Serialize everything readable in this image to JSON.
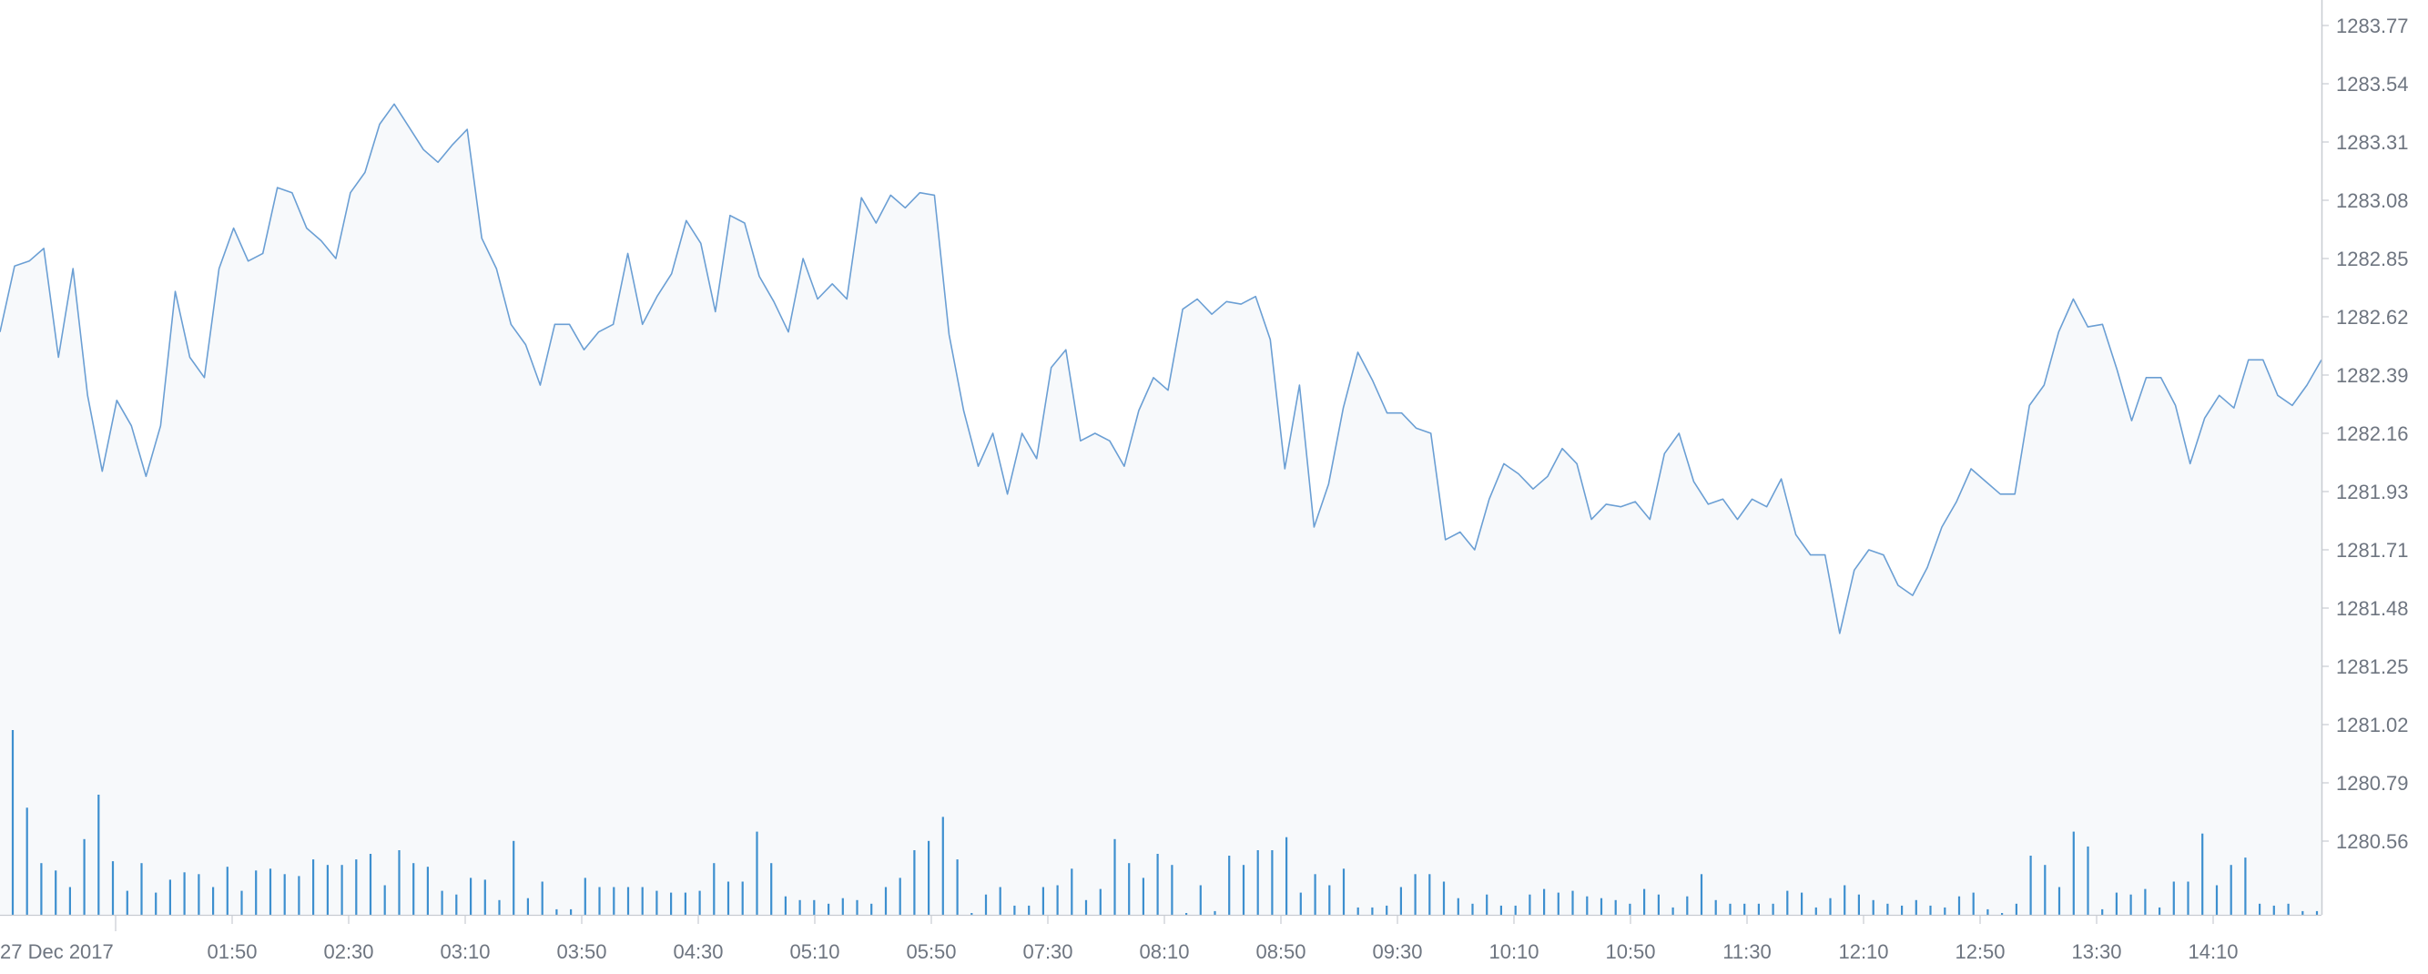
{
  "chart_data": {
    "type": "area",
    "title": "",
    "xlabel": "",
    "ylabel": "",
    "first_label": "27 Dec 2017",
    "x_tick_labels": [
      "27 Dec 2017",
      "01:50",
      "02:30",
      "03:10",
      "03:50",
      "04:30",
      "05:10",
      "05:50",
      "07:30",
      "08:10",
      "08:50",
      "09:30",
      "10:10",
      "10:50",
      "11:30",
      "12:10",
      "12:50",
      "13:30",
      "14:10"
    ],
    "y_tick_labels": [
      "1283.77",
      "1283.54",
      "1283.31",
      "1283.08",
      "1282.85",
      "1282.62",
      "1282.39",
      "1282.16",
      "1281.93",
      "1281.71",
      "1281.48",
      "1281.25",
      "1281.02",
      "1280.79",
      "1280.56"
    ],
    "ylim": [
      1280.33,
      1283.93
    ],
    "y_axis_side": "right",
    "grid": false,
    "line_color": "#6b9fd4",
    "fill_color": "#f7f9fb",
    "volume_color": "#3d8fcf",
    "price_series": [
      1282.56,
      1282.82,
      1282.84,
      1282.89,
      1282.46,
      1282.81,
      1282.31,
      1282.01,
      1282.29,
      1282.19,
      1281.99,
      1282.19,
      1282.72,
      1282.46,
      1282.38,
      1282.81,
      1282.97,
      1282.84,
      1282.87,
      1283.13,
      1283.11,
      1282.97,
      1282.92,
      1282.85,
      1283.11,
      1283.19,
      1283.38,
      1283.46,
      1283.37,
      1283.28,
      1283.23,
      1283.3,
      1283.36,
      1282.93,
      1282.81,
      1282.59,
      1282.51,
      1282.35,
      1282.59,
      1282.59,
      1282.49,
      1282.56,
      1282.59,
      1282.87,
      1282.59,
      1282.7,
      1282.79,
      1283.0,
      1282.91,
      1282.64,
      1283.02,
      1282.99,
      1282.78,
      1282.68,
      1282.56,
      1282.85,
      1282.69,
      1282.75,
      1282.69,
      1283.09,
      1282.99,
      1283.1,
      1283.05,
      1283.11,
      1283.1,
      1282.55,
      1282.25,
      1282.03,
      1282.16,
      1281.92,
      1282.16,
      1282.06,
      1282.42,
      1282.49,
      1282.13,
      1282.16,
      1282.13,
      1282.03,
      1282.25,
      1282.38,
      1282.33,
      1282.65,
      1282.69,
      1282.63,
      1282.68,
      1282.67,
      1282.7,
      1282.53,
      1282.02,
      1282.35,
      1281.79,
      1281.96,
      1282.26,
      1282.48,
      1282.37,
      1282.24,
      1282.24,
      1282.18,
      1282.16,
      1281.74,
      1281.77,
      1281.7,
      1281.9,
      1282.04,
      1282.0,
      1281.94,
      1281.99,
      1282.1,
      1282.04,
      1281.82,
      1281.88,
      1281.87,
      1281.89,
      1281.82,
      1282.08,
      1282.16,
      1281.97,
      1281.88,
      1281.9,
      1281.82,
      1281.9,
      1281.87,
      1281.98,
      1281.76,
      1281.68,
      1281.68,
      1281.37,
      1281.62,
      1281.7,
      1281.68,
      1281.56,
      1281.52,
      1281.63,
      1281.79,
      1281.89,
      1282.02,
      1281.97,
      1281.92,
      1281.92,
      1282.27,
      1282.35,
      1282.56,
      1282.69,
      1282.58,
      1282.59,
      1282.41,
      1282.21,
      1282.38,
      1282.38,
      1282.27,
      1282.04,
      1282.22,
      1282.31,
      1282.26,
      1282.45,
      1282.45,
      1282.31,
      1282.27,
      1282.35,
      1282.45
    ],
    "volume_series": [
      100,
      58,
      28,
      24,
      15,
      41,
      65,
      29,
      13,
      28,
      12,
      19,
      23,
      22,
      15,
      26,
      13,
      24,
      25,
      22,
      21,
      30,
      27,
      27,
      30,
      33,
      16,
      35,
      28,
      26,
      13,
      11,
      20,
      19,
      8,
      40,
      9,
      18,
      3,
      3,
      20,
      15,
      15,
      15,
      15,
      13,
      12,
      12,
      13,
      28,
      18,
      18,
      45,
      28,
      10,
      8,
      8,
      6,
      9,
      8,
      6,
      15,
      20,
      35,
      40,
      53,
      30,
      1,
      11,
      15,
      5,
      5,
      15,
      16,
      25,
      8,
      14,
      41,
      28,
      20,
      33,
      27,
      1,
      16,
      2,
      32,
      27,
      35,
      35,
      42,
      12,
      22,
      16,
      25,
      4,
      4,
      5,
      15,
      22,
      22,
      18,
      9,
      6,
      11,
      5,
      5,
      11,
      14,
      12,
      13,
      10,
      9,
      8,
      6,
      14,
      11,
      4,
      10,
      22,
      8,
      6,
      6,
      6,
      6,
      13,
      12,
      4,
      9,
      16,
      11,
      8,
      6,
      5,
      8,
      5,
      4,
      10,
      12,
      3,
      1,
      6,
      32,
      27,
      15,
      45,
      37,
      3,
      12,
      11,
      14,
      4,
      18,
      18,
      44,
      16,
      27,
      31,
      6,
      5,
      6,
      2,
      2
    ]
  }
}
